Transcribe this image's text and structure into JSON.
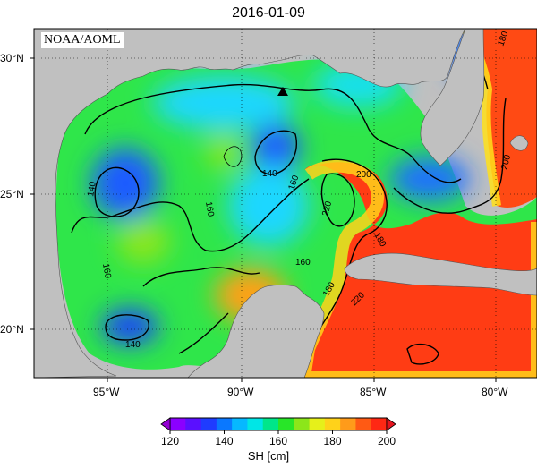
{
  "title": "2016-01-09",
  "credit": "NOAA/AOML",
  "lat_ticks": [
    "30°N",
    "25°N",
    "20°N"
  ],
  "lon_ticks": [
    "95°W",
    "90°W",
    "85°W",
    "80°W"
  ],
  "contour_labels": [
    "140",
    "140",
    "140",
    "160",
    "160",
    "160",
    "160",
    "180",
    "180",
    "180",
    "200",
    "200",
    "220",
    "220"
  ],
  "colorbar": {
    "label": "SH [cm]",
    "ticks": [
      "120",
      "140",
      "160",
      "180",
      "200"
    ],
    "colors": [
      "#8b00ff",
      "#5a10ff",
      "#1f3cff",
      "#0a78ff",
      "#06b8ff",
      "#00e6e6",
      "#00e68a",
      "#28e628",
      "#8ce61a",
      "#e6f01a",
      "#ffd21a",
      "#ff9b1a",
      "#ff5a14",
      "#ff2814"
    ]
  },
  "land_color": "#c0c0c0",
  "marker": "triangle-marker"
}
